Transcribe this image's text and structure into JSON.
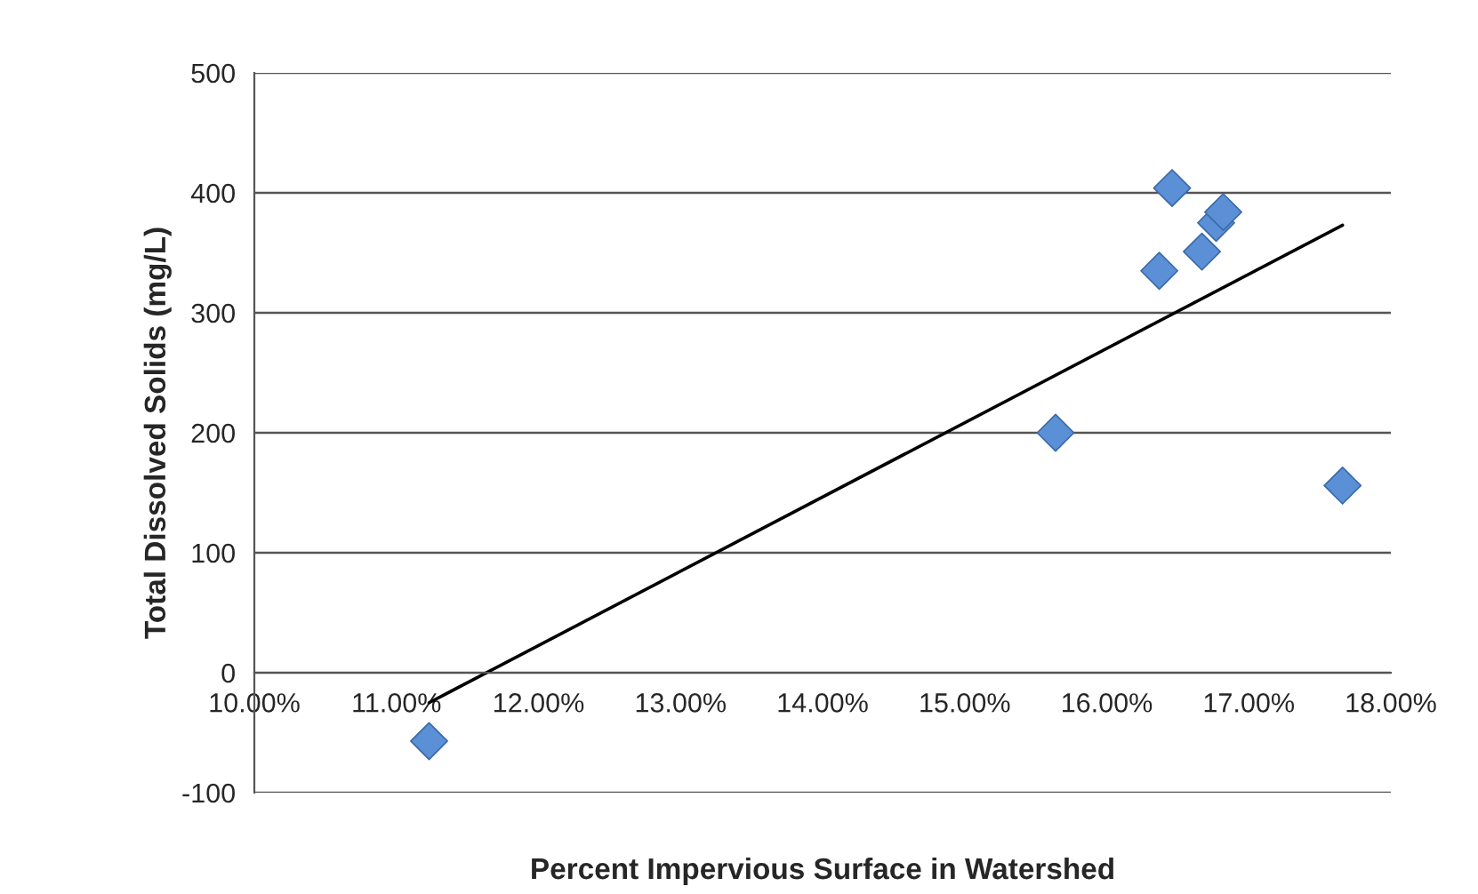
{
  "chart_data": {
    "type": "scatter",
    "xlabel": "Percent Impervious Surface in Watershed",
    "ylabel": "Total Dissolved Solids (mg/L)",
    "series": [
      {
        "color": "#5b8fd6",
        "marker": "diamond",
        "x": [
          11.23,
          15.64,
          16.37,
          16.46,
          16.67,
          16.77,
          16.82,
          17.66
        ],
        "values": [
          -57,
          200,
          335,
          404,
          351,
          375,
          384,
          156
        ]
      },
      {
        "type": "line",
        "color": "#000000",
        "marker": "none",
        "line_style": "solid",
        "x": [
          11.23,
          17.66
        ],
        "values": [
          -25,
          373
        ]
      }
    ],
    "xlim": [
      10,
      18
    ],
    "xticks": [
      {
        "value": 10,
        "label": "10.00%"
      },
      {
        "value": 11,
        "label": "11.00%"
      },
      {
        "value": 12,
        "label": "12.00%"
      },
      {
        "value": 13,
        "label": "13.00%"
      },
      {
        "value": 14,
        "label": "14.00%"
      },
      {
        "value": 15,
        "label": "15.00%"
      },
      {
        "value": 16,
        "label": "16.00%"
      },
      {
        "value": 17,
        "label": "17.00%"
      },
      {
        "value": 18,
        "label": "18.00%"
      }
    ],
    "ylim": [
      -100,
      500
    ],
    "yticks": [
      -100,
      0,
      100,
      200,
      300,
      400,
      500
    ],
    "grid": "y",
    "legend": false
  }
}
